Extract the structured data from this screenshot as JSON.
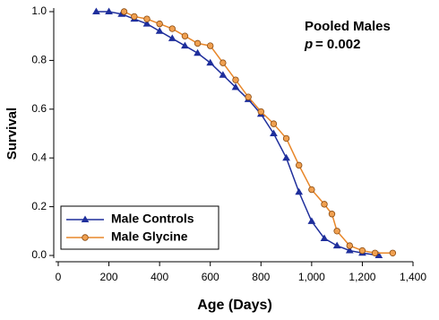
{
  "chart_data": {
    "type": "line",
    "annotations": {
      "title": "Pooled Males",
      "stat_symbol": "p",
      "stat_value": "= 0.002"
    },
    "xlabel": "Age (Days)",
    "ylabel": "Survival",
    "xlim": [
      0,
      1400
    ],
    "ylim": [
      0,
      1.0
    ],
    "xticks": [
      0,
      200,
      400,
      600,
      800,
      {
        "value": 1000,
        "label": "1,000"
      },
      {
        "value": 1200,
        "label": "1,200"
      },
      {
        "value": 1400,
        "label": "1,400"
      }
    ],
    "yticks": [
      {
        "value": 0,
        "label": "0.0"
      },
      0.2,
      0.4,
      0.6,
      0.8,
      {
        "value": 1,
        "label": "1.0"
      }
    ],
    "legend": "lower left",
    "series": [
      {
        "name": "Male Controls",
        "color": "#1f2f9c",
        "marker": "triangle",
        "x": [
          150,
          200,
          250,
          300,
          350,
          400,
          450,
          500,
          550,
          600,
          650,
          700,
          750,
          800,
          850,
          900,
          950,
          1000,
          1050,
          1100,
          1150,
          1200,
          1265
        ],
        "values": [
          1.0,
          1.0,
          0.99,
          0.97,
          0.95,
          0.92,
          0.89,
          0.86,
          0.83,
          0.79,
          0.74,
          0.69,
          0.64,
          0.58,
          0.5,
          0.4,
          0.26,
          0.14,
          0.07,
          0.04,
          0.02,
          0.01,
          0.0
        ]
      },
      {
        "name": "Male Glycine",
        "color": "#e8872a",
        "marker": "circle",
        "x": [
          260,
          300,
          350,
          400,
          450,
          500,
          550,
          600,
          650,
          700,
          750,
          800,
          850,
          900,
          950,
          1000,
          1050,
          1080,
          1100,
          1150,
          1200,
          1250,
          1320
        ],
        "values": [
          1.0,
          0.98,
          0.97,
          0.95,
          0.93,
          0.9,
          0.87,
          0.86,
          0.79,
          0.72,
          0.65,
          0.59,
          0.54,
          0.48,
          0.37,
          0.27,
          0.21,
          0.17,
          0.1,
          0.04,
          0.02,
          0.01,
          0.01
        ]
      }
    ]
  }
}
